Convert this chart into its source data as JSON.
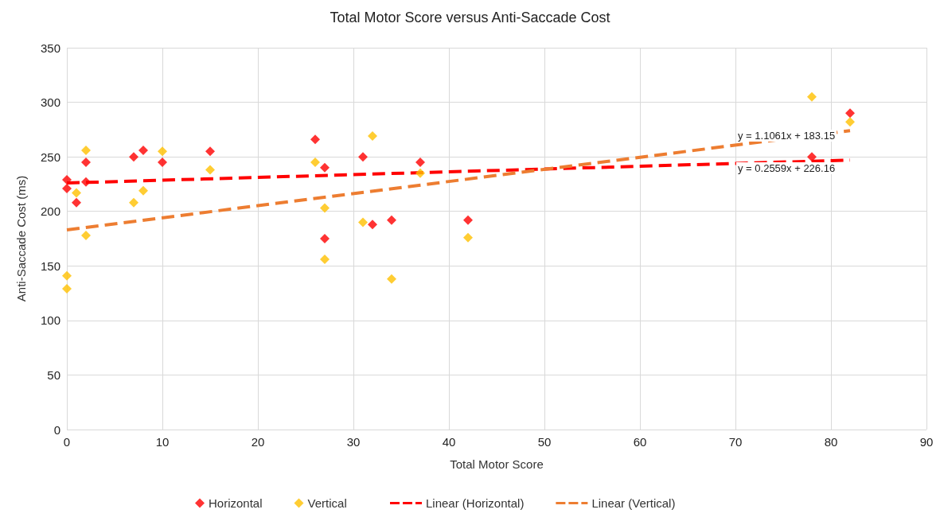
{
  "chart_data": {
    "type": "scatter",
    "title": "Total Motor Score versus Anti-Saccade Cost",
    "xlabel": "Total Motor Score",
    "ylabel": "Anti-Saccade Cost (ms)",
    "xlim": [
      0,
      90
    ],
    "xticks": [
      0,
      10,
      20,
      30,
      40,
      50,
      60,
      70,
      80,
      90
    ],
    "ylim": [
      0,
      350
    ],
    "yticks": [
      0,
      50,
      100,
      150,
      200,
      250,
      300,
      350
    ],
    "grid": true,
    "legend": "bottom",
    "marker": "diamond",
    "series": [
      {
        "name": "Horizontal",
        "color": "#ff0000",
        "x": [
          0,
          0,
          1,
          2,
          2,
          7,
          8,
          10,
          15,
          26,
          27,
          27,
          31,
          32,
          34,
          37,
          42,
          78,
          82
        ],
        "values": [
          229,
          221,
          208,
          245,
          227,
          250,
          256,
          245,
          255,
          266,
          240,
          175,
          250,
          188,
          192,
          245,
          192,
          250,
          290
        ]
      },
      {
        "name": "Vertical",
        "color": "#ffc000",
        "x": [
          0,
          0,
          1,
          2,
          2,
          7,
          8,
          10,
          15,
          26,
          27,
          27,
          31,
          32,
          34,
          37,
          42,
          78,
          82
        ],
        "values": [
          141,
          129,
          217,
          256,
          178,
          208,
          219,
          255,
          238,
          245,
          203,
          156,
          190,
          269,
          138,
          235,
          176,
          305,
          282
        ]
      },
      {
        "name": "Linear (Horizontal)",
        "type": "line",
        "color": "#ff0000",
        "line_style": "dashed",
        "marker": "none",
        "x": [
          0,
          82
        ],
        "values": [
          226,
          247
        ]
      },
      {
        "name": "Linear (Vertical)",
        "type": "line",
        "color": "#ed7d31",
        "line_style": "dashed",
        "marker": "none",
        "x": [
          0,
          82
        ],
        "values": [
          183,
          274
        ]
      }
    ],
    "annotations": [
      "y = 1.1061x + 183.15",
      "y = 0.2559x + 226.16"
    ]
  }
}
